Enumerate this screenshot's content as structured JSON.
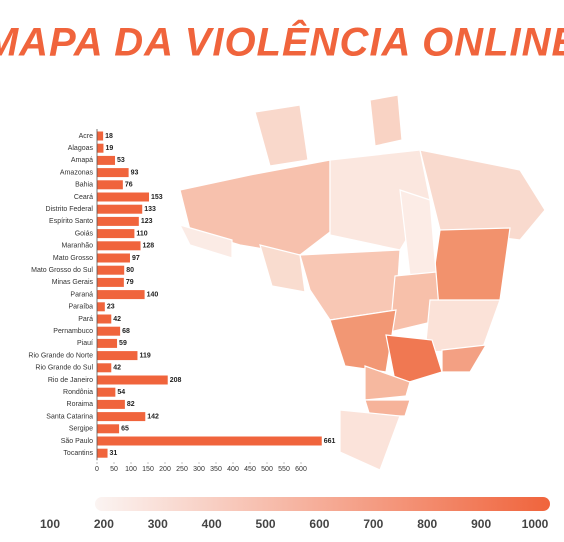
{
  "title": "MAPA DA VIOLÊNCIA ONLINE",
  "chart_data": {
    "type": "bar",
    "orientation": "horizontal",
    "categories": [
      "Acre",
      "Alagoas",
      "Amapá",
      "Amazonas",
      "Bahia",
      "Ceará",
      "Distrito Federal",
      "Espírito Santo",
      "Goiás",
      "Maranhão",
      "Mato Grosso",
      "Mato Grosso do Sul",
      "Minas Gerais",
      "Paraná",
      "Paraíba",
      "Pará",
      "Pernambuco",
      "Piauí",
      "Rio Grande do Norte",
      "Rio Grande do Sul",
      "Rio de Janeiro",
      "Rondônia",
      "Roraima",
      "Santa Catarina",
      "Sergipe",
      "São Paulo",
      "Tocantins"
    ],
    "values": [
      18,
      19,
      53,
      93,
      76,
      153,
      133,
      123,
      110,
      128,
      97,
      80,
      79,
      140,
      23,
      42,
      68,
      59,
      119,
      42,
      208,
      54,
      82,
      142,
      65,
      661,
      31
    ],
    "color": "#f0643c",
    "xlim": [
      0,
      700
    ],
    "xticks": [
      0,
      50,
      100,
      150,
      200,
      250,
      300,
      350,
      400,
      450,
      500,
      550,
      600
    ]
  },
  "color_scale": {
    "ticks": [
      100,
      200,
      300,
      400,
      500,
      600,
      700,
      800,
      900,
      1000
    ],
    "colors": [
      "#fbf4f2",
      "#f0643c"
    ]
  }
}
